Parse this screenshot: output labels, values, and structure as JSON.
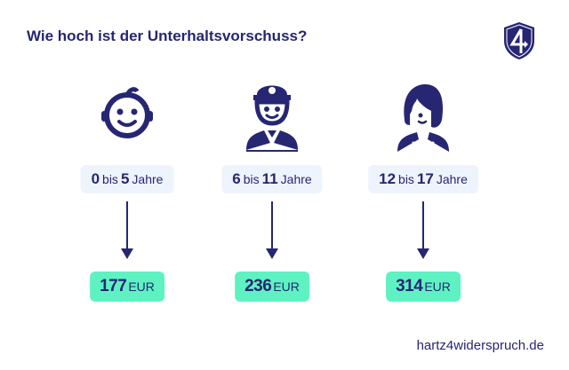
{
  "title": "Wie hoch ist der Unterhaltsvorschuss?",
  "logo": {
    "icon": "shield-4-logo",
    "text": "4"
  },
  "groups": [
    {
      "icon": "baby-face-icon",
      "age_from": "0",
      "bis": "bis",
      "age_to": "5",
      "unit": "Jahre",
      "amount": "177",
      "currency": "EUR"
    },
    {
      "icon": "child-with-cap-icon",
      "age_from": "6",
      "bis": "bis",
      "age_to": "11",
      "unit": "Jahre",
      "amount": "236",
      "currency": "EUR"
    },
    {
      "icon": "teen-girl-icon",
      "age_from": "12",
      "bis": "bis",
      "age_to": "17",
      "unit": "Jahre",
      "amount": "314",
      "currency": "EUR"
    }
  ],
  "footer": "hartz4widerspruch.de",
  "colors": {
    "navy": "#262673",
    "pill_light": "#eef4fd",
    "pill_green": "#5ef2c2"
  }
}
